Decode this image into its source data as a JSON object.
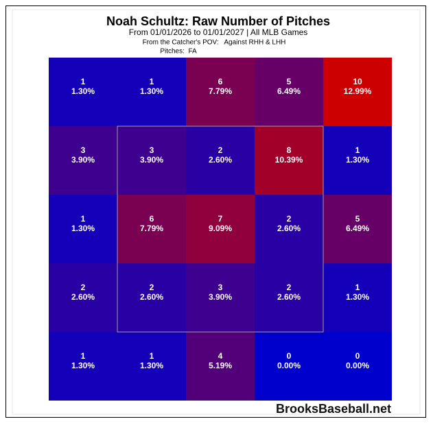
{
  "chart_data": {
    "type": "heatmap",
    "title": "Noah Schultz: Raw Number of Pitches",
    "subtitle": "From 01/01/2026 to 01/01/2027 | All MLB Games",
    "note_pov": "From the Catcher's POV:   Against RHH & LHH",
    "note_pitches": "Pitches:  FA",
    "watermark": "BrooksBaseball.net",
    "values": [
      [
        1,
        1,
        6,
        5,
        10
      ],
      [
        3,
        3,
        2,
        8,
        1
      ],
      [
        1,
        6,
        7,
        2,
        5
      ],
      [
        2,
        2,
        3,
        2,
        1
      ],
      [
        1,
        1,
        4,
        0,
        0
      ]
    ],
    "percent_labels": [
      [
        "1.30%",
        "1.30%",
        "7.79%",
        "6.49%",
        "12.99%"
      ],
      [
        "3.90%",
        "3.90%",
        "2.60%",
        "10.39%",
        "1.30%"
      ],
      [
        "1.30%",
        "7.79%",
        "9.09%",
        "2.60%",
        "6.49%"
      ],
      [
        "2.60%",
        "2.60%",
        "3.90%",
        "2.60%",
        "1.30%"
      ],
      [
        "1.30%",
        "1.30%",
        "5.19%",
        "0.00%",
        "0.00%"
      ]
    ],
    "color_scale": [
      "#0000cc",
      "#cc0000"
    ]
  }
}
